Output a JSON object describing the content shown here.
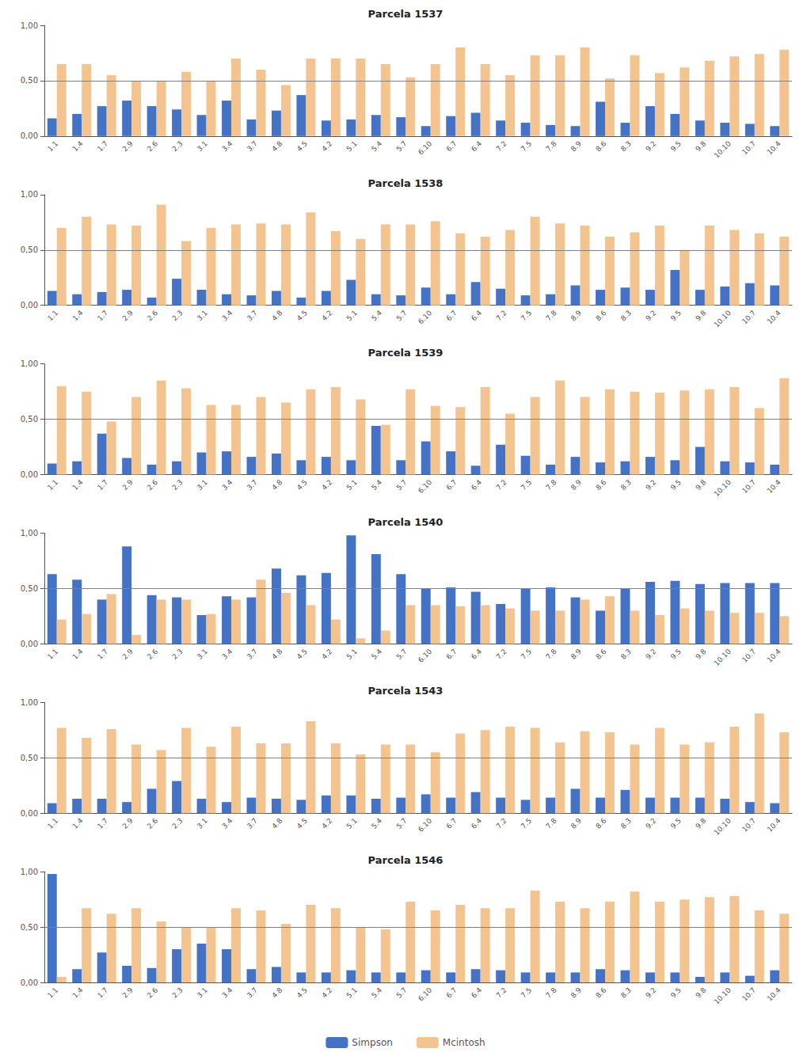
{
  "chart_data": [
    {
      "type": "bar",
      "title": "Parcela 1537",
      "categories": [
        "1.1",
        "1.4",
        "1.7",
        "2.9",
        "2.6",
        "2.3",
        "3.1",
        "3.4",
        "3.7",
        "4.8",
        "4.5",
        "4.2",
        "5.1",
        "5.4",
        "5.7",
        "6.10",
        "6.7",
        "6.4",
        "7.2",
        "7.5",
        "7.8",
        "8.9",
        "8.6",
        "8.3",
        "9.2",
        "9.5",
        "9.8",
        "10.10",
        "10.7",
        "10.4"
      ],
      "series": [
        {
          "name": "Simpson",
          "color": "#4472C4",
          "values": [
            0.16,
            0.2,
            0.27,
            0.32,
            0.27,
            0.24,
            0.19,
            0.32,
            0.15,
            0.23,
            0.37,
            0.14,
            0.15,
            0.19,
            0.17,
            0.09,
            0.18,
            0.21,
            0.14,
            0.12,
            0.1,
            0.09,
            0.31,
            0.12,
            0.27,
            0.2,
            0.14,
            0.12,
            0.11,
            0.09
          ]
        },
        {
          "name": "Mcintosh",
          "color": "#F4C490",
          "values": [
            0.65,
            0.65,
            0.55,
            0.5,
            0.5,
            0.58,
            0.5,
            0.7,
            0.6,
            0.46,
            0.7,
            0.7,
            0.7,
            0.65,
            0.53,
            0.65,
            0.8,
            0.65,
            0.55,
            0.73,
            0.73,
            0.8,
            0.52,
            0.73,
            0.57,
            0.62,
            0.68,
            0.72,
            0.74,
            0.78
          ]
        }
      ],
      "reference_line": {
        "value": 0.5,
        "color": "#808080"
      },
      "ylim": [
        0.0,
        1.0
      ],
      "yticks": [
        {
          "value": 0.0,
          "label": "0,00"
        },
        {
          "value": 0.5,
          "label": "0,50"
        },
        {
          "value": 1.0,
          "label": "1,00"
        }
      ],
      "grid": false,
      "legend": "bottom"
    },
    {
      "type": "bar",
      "title": "Parcela 1538",
      "categories": [
        "1.1",
        "1.4",
        "1.7",
        "2.9",
        "2.6",
        "2.3",
        "3.1",
        "3.4",
        "3.7",
        "4.8",
        "4.5",
        "4.2",
        "5.1",
        "5.4",
        "5.7",
        "6.10",
        "6.7",
        "6.4",
        "7.2",
        "7.5",
        "7.8",
        "8.9",
        "8.6",
        "8.3",
        "9.2",
        "9.5",
        "9.8",
        "10.10",
        "10.7",
        "10.4"
      ],
      "series": [
        {
          "name": "Simpson",
          "color": "#4472C4",
          "values": [
            0.13,
            0.1,
            0.12,
            0.14,
            0.07,
            0.24,
            0.14,
            0.1,
            0.09,
            0.13,
            0.07,
            0.13,
            0.23,
            0.1,
            0.09,
            0.16,
            0.1,
            0.21,
            0.15,
            0.09,
            0.1,
            0.18,
            0.14,
            0.16,
            0.14,
            0.32,
            0.14,
            0.17,
            0.2,
            0.18
          ]
        },
        {
          "name": "Mcintosh",
          "color": "#F4C490",
          "values": [
            0.7,
            0.8,
            0.73,
            0.72,
            0.91,
            0.58,
            0.7,
            0.73,
            0.74,
            0.73,
            0.84,
            0.67,
            0.6,
            0.73,
            0.73,
            0.76,
            0.65,
            0.62,
            0.68,
            0.8,
            0.74,
            0.72,
            0.62,
            0.66,
            0.72,
            0.5,
            0.72,
            0.68,
            0.65,
            0.62
          ]
        }
      ],
      "reference_line": {
        "value": 0.5,
        "color": "#808080"
      },
      "ylim": [
        0.0,
        1.0
      ],
      "yticks": [
        {
          "value": 0.0,
          "label": "0,00"
        },
        {
          "value": 0.5,
          "label": "0,50"
        },
        {
          "value": 1.0,
          "label": "1,00"
        }
      ],
      "grid": false,
      "legend": "bottom"
    },
    {
      "type": "bar",
      "title": "Parcela 1539",
      "categories": [
        "1.1",
        "1.4",
        "1.7",
        "2.9",
        "2.6",
        "2.3",
        "3.1",
        "3.4",
        "3.7",
        "4.8",
        "4.5",
        "4.2",
        "5.1",
        "5.4",
        "5.7",
        "6.10",
        "6.7",
        "6.4",
        "7.2",
        "7.5",
        "7.8",
        "8.9",
        "8.6",
        "8.3",
        "9.2",
        "9.5",
        "9.8",
        "10.10",
        "10.7",
        "10.4"
      ],
      "series": [
        {
          "name": "Simpson",
          "color": "#4472C4",
          "values": [
            0.1,
            0.12,
            0.37,
            0.15,
            0.09,
            0.12,
            0.2,
            0.21,
            0.16,
            0.19,
            0.13,
            0.16,
            0.13,
            0.44,
            0.13,
            0.3,
            0.21,
            0.08,
            0.27,
            0.17,
            0.09,
            0.16,
            0.11,
            0.12,
            0.16,
            0.13,
            0.25,
            0.12,
            0.11,
            0.09
          ]
        },
        {
          "name": "Mcintosh",
          "color": "#F4C490",
          "values": [
            0.8,
            0.75,
            0.48,
            0.7,
            0.85,
            0.78,
            0.63,
            0.63,
            0.7,
            0.65,
            0.77,
            0.79,
            0.68,
            0.45,
            0.77,
            0.62,
            0.61,
            0.79,
            0.55,
            0.7,
            0.85,
            0.7,
            0.77,
            0.75,
            0.74,
            0.76,
            0.77,
            0.79,
            0.6,
            0.87
          ]
        }
      ],
      "reference_line": {
        "value": 0.5,
        "color": "#808080"
      },
      "ylim": [
        0.0,
        1.0
      ],
      "yticks": [
        {
          "value": 0.0,
          "label": "0,00"
        },
        {
          "value": 0.5,
          "label": "0,50"
        },
        {
          "value": 1.0,
          "label": "1,00"
        }
      ],
      "grid": false,
      "legend": "bottom"
    },
    {
      "type": "bar",
      "title": "Parcela 1540",
      "categories": [
        "1.1",
        "1.4",
        "1.7",
        "2.9",
        "2.6",
        "2.3",
        "3.1",
        "3.4",
        "3.7",
        "4.8",
        "4.5",
        "4.2",
        "5.1",
        "5.4",
        "5.7",
        "6.10",
        "6.7",
        "6.4",
        "7.2",
        "7.5",
        "7.8",
        "8.9",
        "8.6",
        "8.3",
        "9.2",
        "9.5",
        "9.8",
        "10.10",
        "10.7",
        "10.4"
      ],
      "series": [
        {
          "name": "Simpson",
          "color": "#4472C4",
          "values": [
            0.63,
            0.58,
            0.4,
            0.88,
            0.44,
            0.42,
            0.26,
            0.43,
            0.42,
            0.68,
            0.62,
            0.64,
            0.98,
            0.81,
            0.63,
            0.5,
            0.51,
            0.47,
            0.36,
            0.5,
            0.51,
            0.42,
            0.3,
            0.5,
            0.56,
            0.57,
            0.54,
            0.55,
            0.55,
            0.55
          ]
        },
        {
          "name": "Mcintosh",
          "color": "#F4C490",
          "values": [
            0.22,
            0.27,
            0.45,
            0.08,
            0.4,
            0.4,
            0.27,
            0.4,
            0.58,
            0.46,
            0.35,
            0.22,
            0.05,
            0.12,
            0.35,
            0.35,
            0.34,
            0.35,
            0.32,
            0.3,
            0.3,
            0.4,
            0.43,
            0.3,
            0.26,
            0.32,
            0.3,
            0.28,
            0.28,
            0.25
          ]
        }
      ],
      "reference_line": {
        "value": 0.5,
        "color": "#808080"
      },
      "ylim": [
        0.0,
        1.0
      ],
      "yticks": [
        {
          "value": 0.0,
          "label": "0,00"
        },
        {
          "value": 0.5,
          "label": "0,50"
        },
        {
          "value": 1.0,
          "label": "1,00"
        }
      ],
      "grid": false,
      "legend": "bottom"
    },
    {
      "type": "bar",
      "title": "Parcela 1543",
      "categories": [
        "1.1",
        "1.4",
        "1.7",
        "2.9",
        "2.6",
        "2.3",
        "3.1",
        "3.4",
        "3.7",
        "4.8",
        "4.5",
        "4.2",
        "5.1",
        "5.4",
        "5.7",
        "6.10",
        "6.7",
        "6.4",
        "7.2",
        "7.5",
        "7.8",
        "8.9",
        "8.6",
        "8.3",
        "9.2",
        "9.5",
        "9.8",
        "10.10",
        "10.7",
        "10.4"
      ],
      "series": [
        {
          "name": "Simpson",
          "color": "#4472C4",
          "values": [
            0.09,
            0.13,
            0.13,
            0.1,
            0.22,
            0.29,
            0.13,
            0.1,
            0.14,
            0.13,
            0.12,
            0.16,
            0.16,
            0.13,
            0.14,
            0.17,
            0.14,
            0.19,
            0.14,
            0.12,
            0.14,
            0.22,
            0.14,
            0.21,
            0.14,
            0.14,
            0.14,
            0.13,
            0.1,
            0.09
          ]
        },
        {
          "name": "Mcintosh",
          "color": "#F4C490",
          "values": [
            0.77,
            0.68,
            0.76,
            0.62,
            0.57,
            0.77,
            0.6,
            0.78,
            0.63,
            0.63,
            0.83,
            0.63,
            0.53,
            0.62,
            0.62,
            0.55,
            0.72,
            0.75,
            0.78,
            0.77,
            0.64,
            0.74,
            0.73,
            0.62,
            0.77,
            0.62,
            0.64,
            0.78,
            0.9,
            0.73
          ]
        }
      ],
      "reference_line": {
        "value": 0.5,
        "color": "#808080"
      },
      "ylim": [
        0.0,
        1.0
      ],
      "yticks": [
        {
          "value": 0.0,
          "label": "0,00"
        },
        {
          "value": 0.5,
          "label": "0,50"
        },
        {
          "value": 1.0,
          "label": "1,00"
        }
      ],
      "grid": false,
      "legend": "bottom"
    },
    {
      "type": "bar",
      "title": "Parcela 1546",
      "categories": [
        "1.1",
        "1.4",
        "1.7",
        "2.9",
        "2.6",
        "2.3",
        "3.1",
        "3.4",
        "3.7",
        "4.8",
        "4.5",
        "4.2",
        "5.1",
        "5.4",
        "5.7",
        "6.10",
        "6.7",
        "6.4",
        "7.2",
        "7.5",
        "7.8",
        "8.9",
        "8.6",
        "8.3",
        "9.2",
        "9.5",
        "9.8",
        "10.10",
        "10.7",
        "10.4"
      ],
      "series": [
        {
          "name": "Simpson",
          "color": "#4472C4",
          "values": [
            0.98,
            0.12,
            0.27,
            0.15,
            0.13,
            0.3,
            0.35,
            0.3,
            0.12,
            0.14,
            0.09,
            0.09,
            0.11,
            0.09,
            0.09,
            0.11,
            0.09,
            0.12,
            0.11,
            0.09,
            0.09,
            0.09,
            0.12,
            0.11,
            0.09,
            0.09,
            0.05,
            0.09,
            0.06,
            0.11
          ]
        },
        {
          "name": "Mcintosh",
          "color": "#F4C490",
          "values": [
            0.05,
            0.67,
            0.62,
            0.67,
            0.55,
            0.5,
            0.5,
            0.67,
            0.65,
            0.53,
            0.7,
            0.67,
            0.5,
            0.48,
            0.73,
            0.65,
            0.7,
            0.67,
            0.67,
            0.83,
            0.73,
            0.67,
            0.73,
            0.82,
            0.73,
            0.75,
            0.77,
            0.78,
            0.65,
            0.62
          ]
        }
      ],
      "reference_line": {
        "value": 0.5,
        "color": "#808080"
      },
      "ylim": [
        0.0,
        1.0
      ],
      "yticks": [
        {
          "value": 0.0,
          "label": "0,00"
        },
        {
          "value": 0.5,
          "label": "0,50"
        },
        {
          "value": 1.0,
          "label": "1,00"
        }
      ],
      "grid": false,
      "legend": "bottom"
    }
  ]
}
